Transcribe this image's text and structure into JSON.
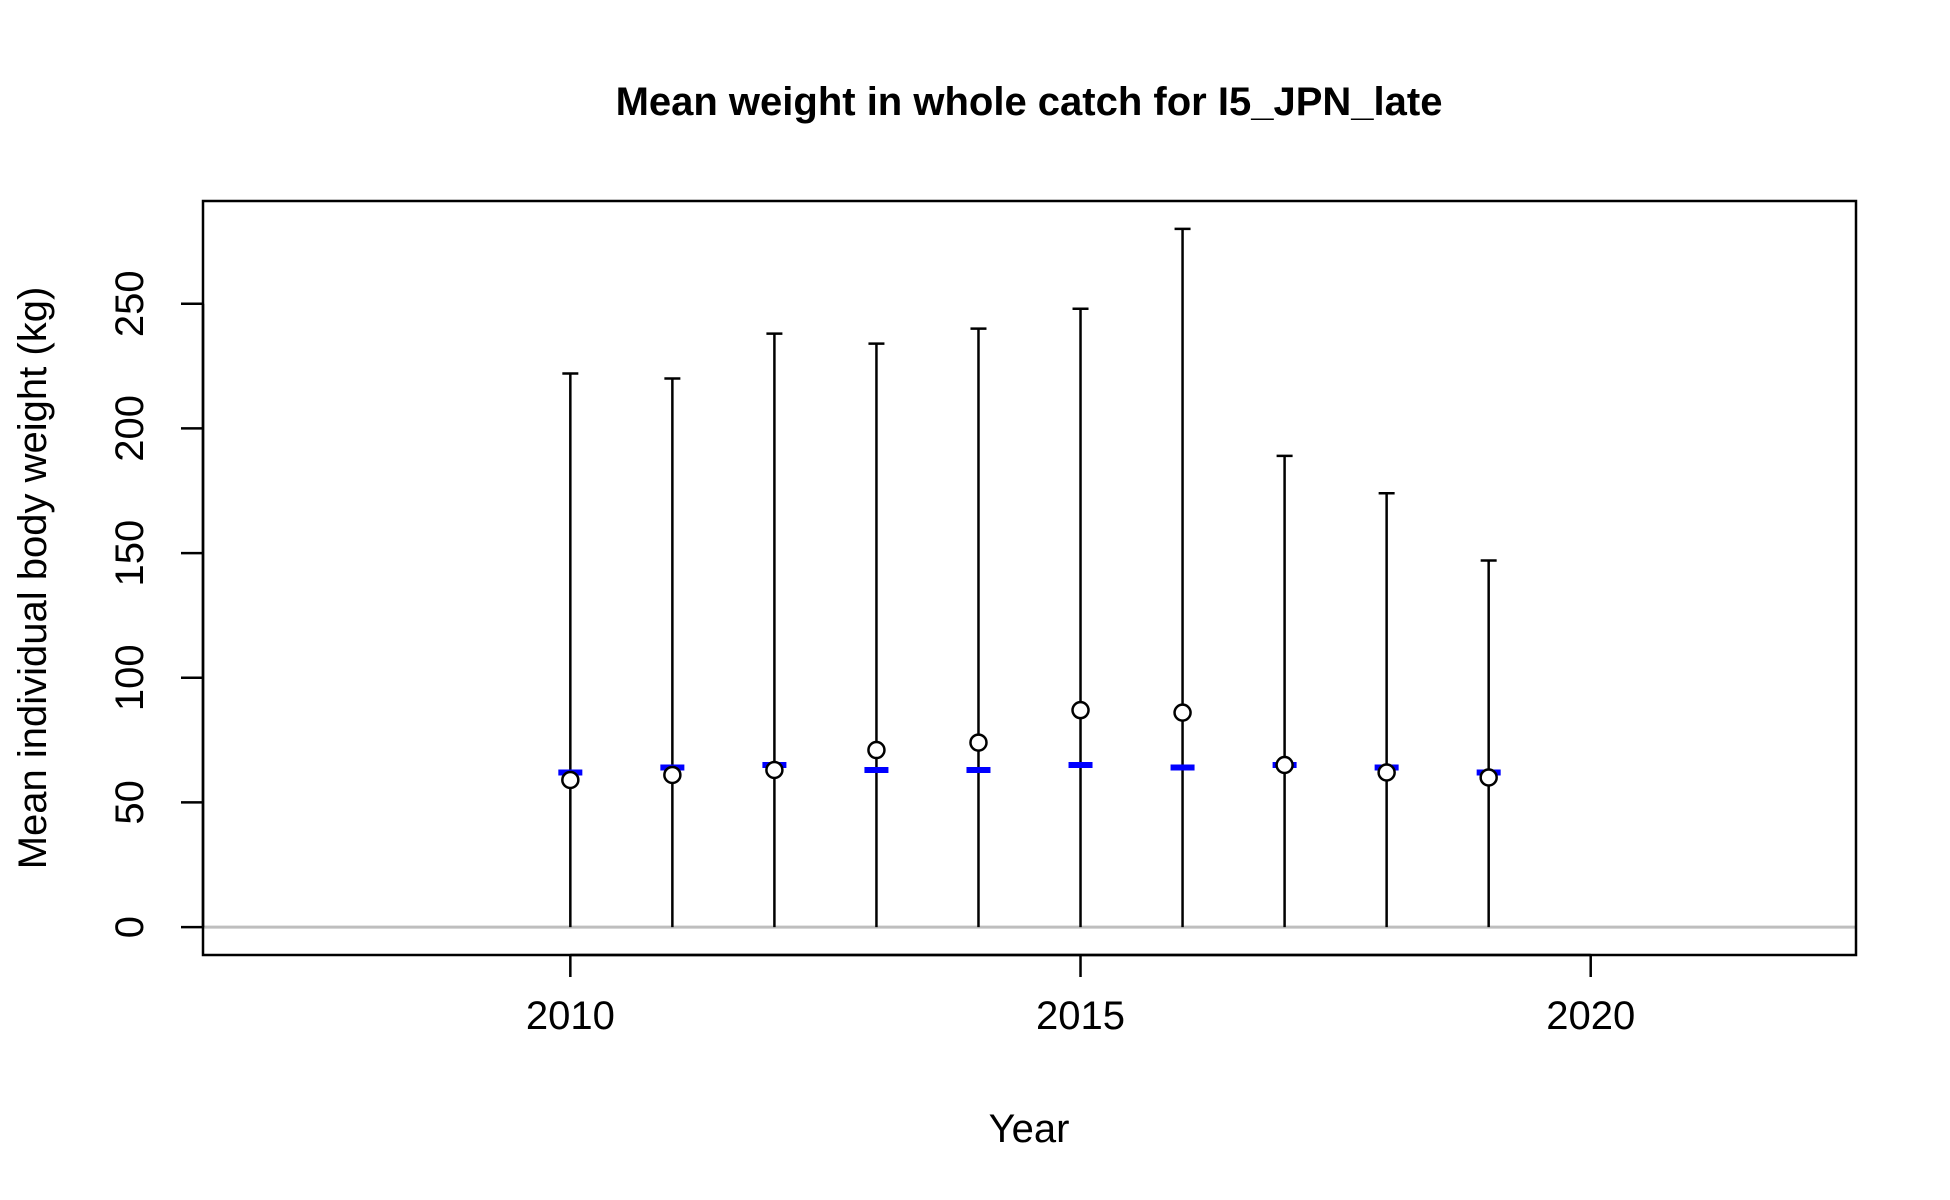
{
  "chart_data": {
    "type": "scatter",
    "title": "Mean weight in whole catch for I5_JPN_late",
    "xlabel": "Year",
    "ylabel": "Mean individual body weight (kg)",
    "xlim": [
      2006.4,
      2022.6
    ],
    "ylim": [
      -11.2,
      291.2
    ],
    "x_ticks": [
      2010,
      2015,
      2020
    ],
    "y_ticks": [
      0,
      50,
      100,
      150,
      200,
      250
    ],
    "grid": false,
    "legend": "none",
    "reference_line": {
      "y": 0,
      "color": "#bebebe"
    },
    "x": [
      2010,
      2011,
      2012,
      2013,
      2014,
      2015,
      2016,
      2017,
      2018,
      2019
    ],
    "series": [
      {
        "values": [
          59,
          61,
          63,
          71,
          74,
          87,
          86,
          65,
          62,
          60
        ],
        "marker": "open-circle",
        "color": "#000000"
      },
      {
        "values": [
          62,
          64,
          65,
          63,
          63,
          65,
          64,
          65,
          64,
          62
        ],
        "marker": "dash",
        "color": "#0000ff"
      }
    ],
    "error_bars": {
      "lower": [
        0,
        0,
        0,
        0,
        0,
        0,
        0,
        0,
        0,
        0
      ],
      "upper": [
        222,
        220,
        238,
        234,
        240,
        248,
        280,
        189,
        174,
        147
      ],
      "color": "#000000"
    }
  }
}
